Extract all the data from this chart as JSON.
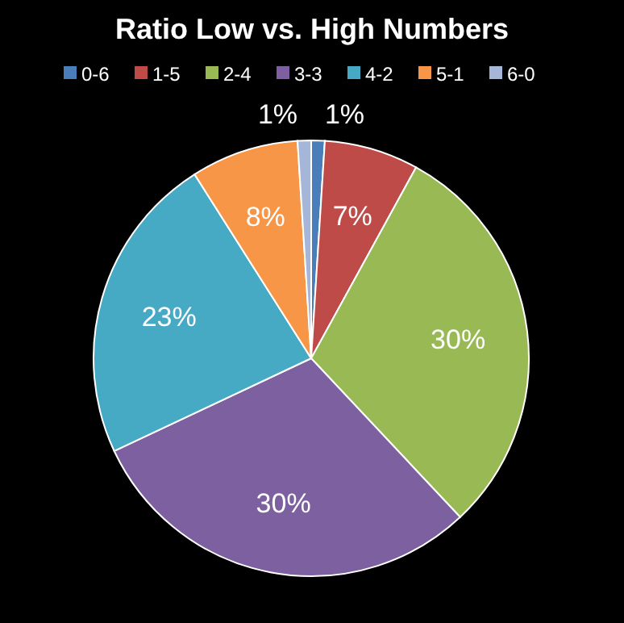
{
  "chart_data": {
    "type": "pie",
    "title": "Ratio Low vs. High Numbers",
    "categories": [
      "0-6",
      "1-5",
      "2-4",
      "3-3",
      "4-2",
      "5-1",
      "6-0"
    ],
    "values": [
      1,
      7,
      30,
      30,
      23,
      8,
      1
    ],
    "colors": [
      "#4a7ebb",
      "#be4b48",
      "#98b954",
      "#7d60a0",
      "#46aac5",
      "#f79646",
      "#a5b6d9"
    ],
    "value_labels": [
      "1%",
      "7%",
      "30%",
      "30%",
      "23%",
      "8%",
      "1%"
    ],
    "legend": "top"
  }
}
